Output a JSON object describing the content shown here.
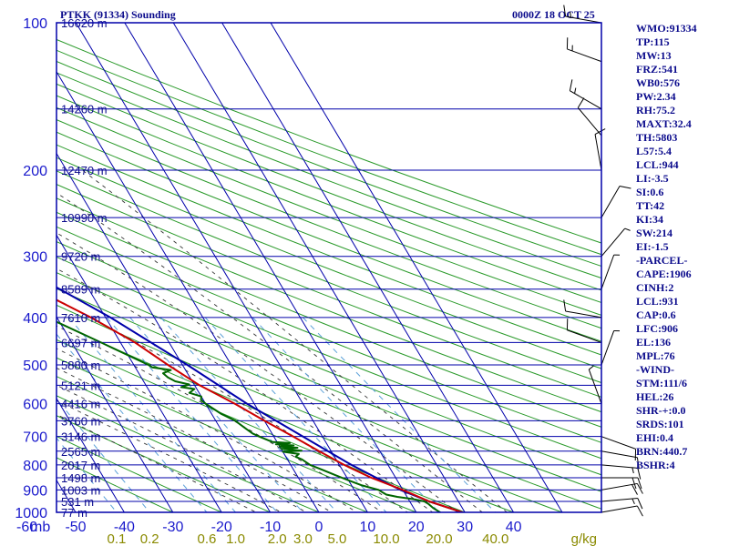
{
  "chart_data": {
    "type": "line",
    "title": "PTKK (91334) Sounding",
    "valid_time": "0000Z 18 OCT 25",
    "pressure_unit_label": "mb",
    "mixing_ratio_unit_label": "g/kg",
    "pressure_levels": [
      100,
      200,
      300,
      400,
      500,
      600,
      700,
      800,
      900,
      1000
    ],
    "temperature_ticks": [
      -80,
      -70,
      -60,
      -50,
      -40,
      -30,
      -20,
      -10,
      0,
      10,
      20,
      30,
      40
    ],
    "mixing_ratio_ticks": [
      "0.1",
      "0.2",
      "0.6",
      "1.0",
      "2.0",
      "3.0",
      "5.0",
      "10.0",
      "20.0",
      "40.0"
    ],
    "height_labels": [
      {
        "p": 100,
        "text": "16620 m"
      },
      {
        "p": 150,
        "text": "14260 m"
      },
      {
        "p": 200,
        "text": "12470 m"
      },
      {
        "p": 250,
        "text": "10990 m"
      },
      {
        "p": 300,
        "text": "9720 m"
      },
      {
        "p": 350,
        "text": "8589 m"
      },
      {
        "p": 400,
        "text": "7610 m"
      },
      {
        "p": 450,
        "text": "6697 m"
      },
      {
        "p": 500,
        "text": "5880 m"
      },
      {
        "p": 550,
        "text": "5121 m"
      },
      {
        "p": 600,
        "text": "4416 m"
      },
      {
        "p": 650,
        "text": "3760 m"
      },
      {
        "p": 700,
        "text": "3146 m"
      },
      {
        "p": 750,
        "text": "2565 m"
      },
      {
        "p": 800,
        "text": "2017 m"
      },
      {
        "p": 850,
        "text": "1498 m"
      },
      {
        "p": 900,
        "text": "1003 m"
      },
      {
        "p": 950,
        "text": "531 m"
      },
      {
        "p": 1000,
        "text": "77 m"
      }
    ],
    "series": [
      {
        "name": "Parcel",
        "color": "#0000aa",
        "points": [
          [
            1005,
            30
          ],
          [
            950,
            24
          ],
          [
            900,
            19.5
          ],
          [
            850,
            16
          ],
          [
            800,
            12.5
          ],
          [
            700,
            6
          ],
          [
            600,
            -1.5
          ],
          [
            500,
            -9
          ],
          [
            400,
            -19
          ],
          [
            300,
            -34
          ],
          [
            250,
            -43
          ],
          [
            200,
            -55
          ],
          [
            150,
            -68
          ],
          [
            120,
            -77
          ],
          [
            100,
            -84
          ]
        ]
      },
      {
        "name": "Temperature",
        "color": "#cc0000",
        "points": [
          [
            1005,
            30
          ],
          [
            950,
            24
          ],
          [
            900,
            20
          ],
          [
            850,
            15
          ],
          [
            800,
            11
          ],
          [
            750,
            7.5
          ],
          [
            700,
            4
          ],
          [
            650,
            0
          ],
          [
            600,
            -4
          ],
          [
            550,
            -9
          ],
          [
            500,
            -13
          ],
          [
            450,
            -17
          ],
          [
            400,
            -23
          ],
          [
            350,
            -31
          ],
          [
            300,
            -38
          ],
          [
            250,
            -46
          ],
          [
            200,
            -57
          ],
          [
            160,
            -66
          ],
          [
            130,
            -74
          ],
          [
            110,
            -78
          ],
          [
            104,
            -80
          ],
          [
            100,
            -80
          ]
        ]
      },
      {
        "name": "Dewpoint",
        "color": "#006600",
        "points": [
          [
            1002,
            25
          ],
          [
            980,
            24
          ],
          [
            960,
            23.5
          ],
          [
            950,
            23
          ],
          [
            940,
            21
          ],
          [
            930,
            18
          ],
          [
            920,
            16
          ],
          [
            910,
            15.5
          ],
          [
            900,
            15
          ],
          [
            880,
            12
          ],
          [
            860,
            10
          ],
          [
            840,
            8
          ],
          [
            820,
            6
          ],
          [
            800,
            4
          ],
          [
            790,
            3.5
          ],
          [
            780,
            3
          ],
          [
            770,
            2
          ],
          [
            760,
            3
          ],
          [
            752,
            0
          ],
          [
            748,
            4
          ],
          [
            742,
            0
          ],
          [
            738,
            3.5
          ],
          [
            734,
            0
          ],
          [
            730,
            3
          ],
          [
            726,
            -0.5
          ],
          [
            722,
            2.5
          ],
          [
            718,
            -1
          ],
          [
            700,
            -3
          ],
          [
            690,
            -4
          ],
          [
            670,
            -5
          ],
          [
            650,
            -6
          ],
          [
            630,
            -8
          ],
          [
            600,
            -10
          ],
          [
            590,
            -10.5
          ],
          [
            580,
            -10
          ],
          [
            570,
            -12
          ],
          [
            560,
            -10.5
          ],
          [
            555,
            -13
          ],
          [
            548,
            -11
          ],
          [
            540,
            -13.5
          ],
          [
            530,
            -14.5
          ],
          [
            520,
            -15
          ],
          [
            512,
            -13
          ],
          [
            506,
            -16.5
          ],
          [
            500,
            -17
          ],
          [
            450,
            -24
          ],
          [
            400,
            -32
          ],
          [
            350,
            -38
          ],
          [
            300,
            -44
          ],
          [
            270,
            -50
          ],
          [
            250,
            -57
          ],
          [
            220,
            -60
          ],
          [
            200,
            -65
          ],
          [
            180,
            -72
          ],
          [
            160,
            -82
          ],
          [
            150,
            -85
          ]
        ]
      }
    ],
    "winds": [
      {
        "p": 1000,
        "dir": 80,
        "spd": 10
      },
      {
        "p": 950,
        "dir": 85,
        "spd": 15
      },
      {
        "p": 900,
        "dir": 80,
        "spd": 20
      },
      {
        "p": 850,
        "dir": 90,
        "spd": 20
      },
      {
        "p": 800,
        "dir": 95,
        "spd": 15
      },
      {
        "p": 750,
        "dir": 100,
        "spd": 10
      },
      {
        "p": 700,
        "dir": 110,
        "spd": 10
      },
      {
        "p": 600,
        "dir": 340,
        "spd": 5
      },
      {
        "p": 500,
        "dir": 20,
        "spd": 5
      },
      {
        "p": 450,
        "dir": 290,
        "spd": 10
      },
      {
        "p": 400,
        "dir": 280,
        "spd": 10
      },
      {
        "p": 350,
        "dir": 20,
        "spd": 5
      },
      {
        "p": 300,
        "dir": 40,
        "spd": 5
      },
      {
        "p": 250,
        "dir": 30,
        "spd": 10
      },
      {
        "p": 200,
        "dir": 350,
        "spd": 10
      },
      {
        "p": 170,
        "dir": 320,
        "spd": 10
      },
      {
        "p": 150,
        "dir": 300,
        "spd": 15
      },
      {
        "p": 120,
        "dir": 290,
        "spd": 15
      },
      {
        "p": 100,
        "dir": 280,
        "spd": 15
      }
    ],
    "indices": [
      "WMO:91334",
      "TP:115",
      "MW:13",
      "FRZ:541",
      "WB0:576",
      "PW:2.34",
      "RH:75.2",
      "MAXT:32.4",
      "TH:5803",
      "L57:5.4",
      "LCL:944",
      "LI:-3.5",
      "SI:0.6",
      "TT:42",
      "KI:34",
      "SW:214",
      "EI:-1.5",
      "-PARCEL-",
      "CAPE:1906",
      "CINH:2",
      "LCL:931",
      "CAP:0.6",
      "LFC:906",
      "EL:136",
      "MPL:76",
      "-WIND-",
      "STM:111/6",
      "HEL:26",
      "SHR-+:0.0",
      "SRDS:101",
      "EHI:0.4",
      "BRN:440.7",
      "BSHR:4"
    ],
    "colors": {
      "grid": "#0000aa",
      "dry_adiabat": "#2a9a2a",
      "moist_adiabat": "#333333",
      "mixing_ratio": "#5aa0d8",
      "text": "#0b0b8c"
    }
  }
}
